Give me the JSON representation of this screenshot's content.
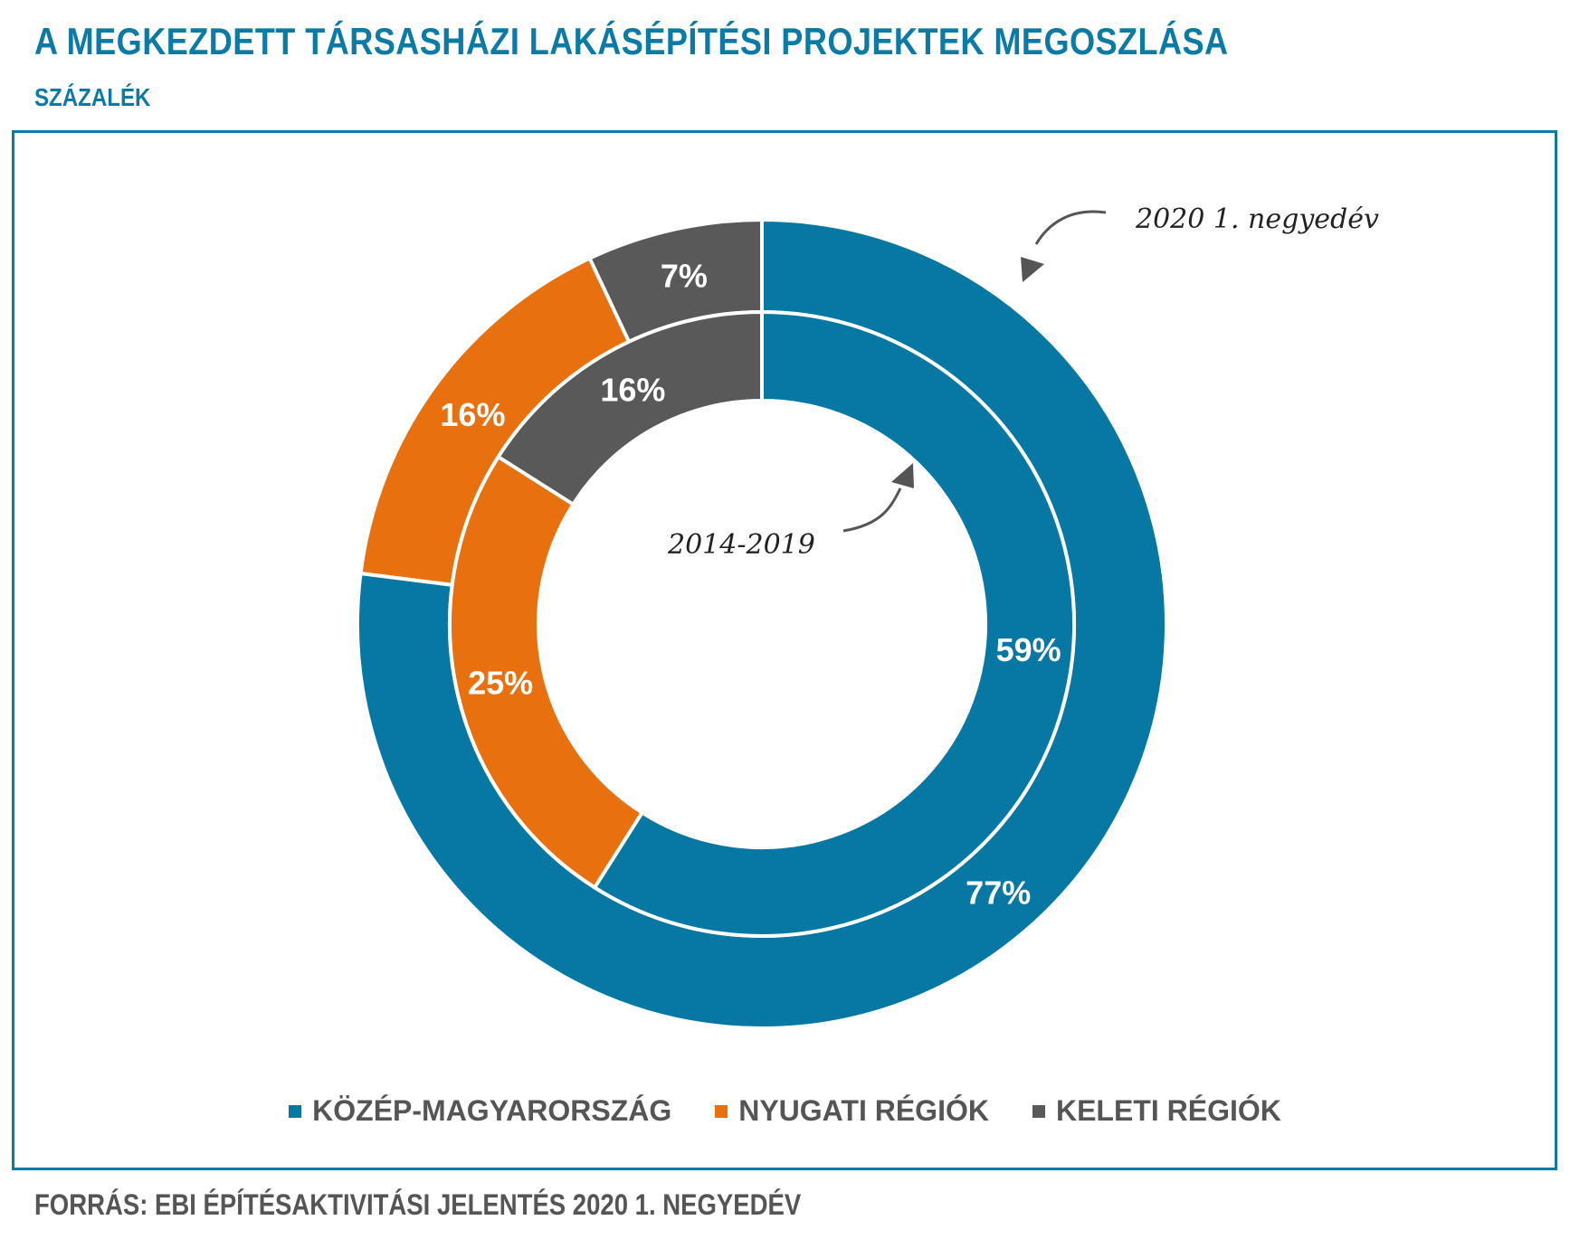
{
  "title": "A MEGKEZDETT TÁRSASHÁZI LAKÁSÉPÍTÉSI PROJEKTEK MEGOSZLÁSA",
  "subtitle": "SZÁZALÉK",
  "source": "FORRÁS: EBI ÉPÍTÉSAKTIVITÁSI JELENTÉS 2020 1. NEGYEDÉV",
  "chart_data": {
    "type": "pie",
    "variant": "nested-donut",
    "categories": [
      "KÖZÉP-MAGYARORSZÁG",
      "NYUGATI RÉGIÓK",
      "KELETI RÉGIÓK"
    ],
    "colors": [
      "#0777a3",
      "#e8700e",
      "#595959"
    ],
    "series": [
      {
        "name": "2020 1. negyedév",
        "ring": "outer",
        "values": [
          77,
          16,
          7
        ],
        "labels": [
          "77%",
          "16%",
          "7%"
        ]
      },
      {
        "name": "2014-2019",
        "ring": "inner",
        "values": [
          59,
          25,
          16
        ],
        "labels": [
          "59%",
          "25%",
          "16%"
        ]
      }
    ],
    "legend": {
      "position": "bottom",
      "entries": [
        "KÖZÉP-MAGYARORSZÁG",
        "NYUGATI RÉGIÓK",
        "KELETI RÉGIÓK"
      ]
    }
  }
}
